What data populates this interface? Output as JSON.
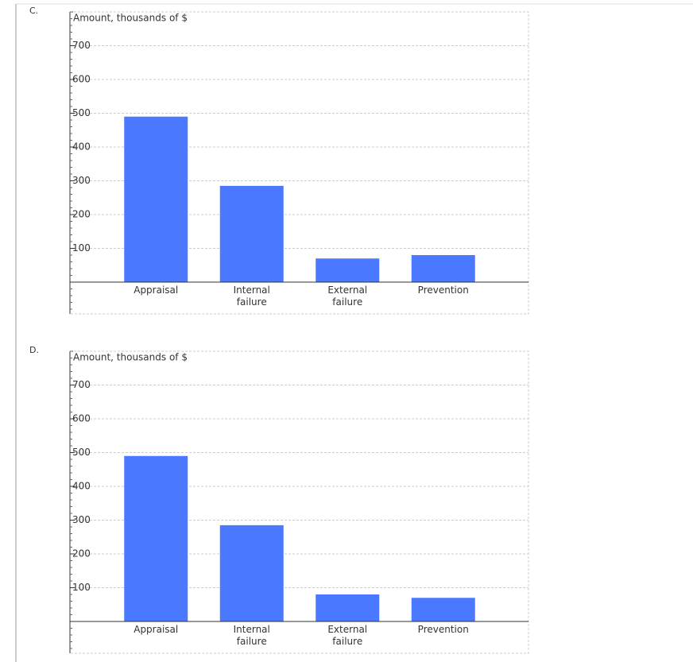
{
  "chart_data": [
    {
      "type": "bar",
      "label": "C.",
      "y_label": "Amount, thousands of $",
      "categories": [
        "Appraisal",
        "Internal failure",
        "External failure",
        "Prevention"
      ],
      "values": [
        490,
        285,
        70,
        80
      ],
      "color": "#4a78ff",
      "ylim": [
        0,
        800
      ],
      "yticks": [
        100,
        200,
        300,
        400,
        500,
        600,
        700
      ],
      "grid": true
    },
    {
      "type": "bar",
      "label": "D.",
      "y_label": "Amount, thousands of $",
      "categories": [
        "Appraisal",
        "Internal failure",
        "External failure",
        "Prevention"
      ],
      "values": [
        490,
        285,
        80,
        70
      ],
      "color": "#4a78ff",
      "ylim": [
        0,
        800
      ],
      "yticks": [
        100,
        200,
        300,
        400,
        500,
        600,
        700
      ],
      "grid": true
    }
  ]
}
